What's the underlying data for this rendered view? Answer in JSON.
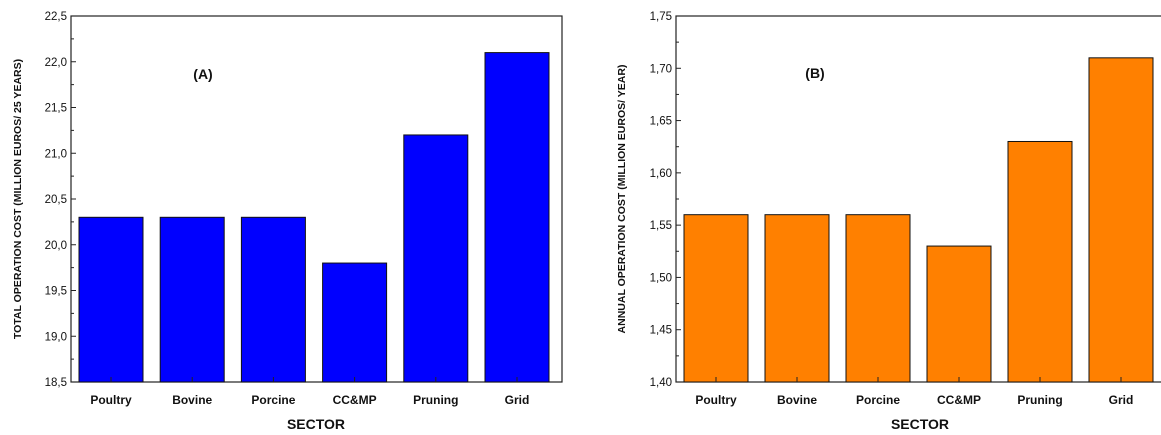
{
  "chart_data": [
    {
      "type": "bar",
      "annotation": "(A)",
      "categories": [
        "Poultry",
        "Bovine",
        "Porcine",
        "CC&MP",
        "Pruning",
        "Grid"
      ],
      "values": [
        20.3,
        20.3,
        20.3,
        19.8,
        21.2,
        22.1
      ],
      "xlabel": "SECTOR",
      "ylabel": "TOTAL OPERATION COST (MILLION EUROS/ 25 YEARS)",
      "ylim": [
        18.5,
        22.5
      ],
      "yticks": [
        "18,5",
        "19,0",
        "19,5",
        "20,0",
        "20,5",
        "21,0",
        "21,5",
        "22,0",
        "22,5"
      ],
      "bar_color": "#0000ff",
      "grid": false
    },
    {
      "type": "bar",
      "annotation": "(B)",
      "categories": [
        "Poultry",
        "Bovine",
        "Porcine",
        "CC&MP",
        "Pruning",
        "Grid"
      ],
      "values": [
        1.56,
        1.56,
        1.56,
        1.53,
        1.63,
        1.71
      ],
      "xlabel": "SECTOR",
      "ylabel": "ANNUAL OPERATION COST (MILLION EUROS/ YEAR)",
      "ylim": [
        1.4,
        1.75
      ],
      "yticks": [
        "1,40",
        "1,45",
        "1,50",
        "1,55",
        "1,60",
        "1,65",
        "1,70",
        "1,75"
      ],
      "bar_color": "#ff8000",
      "grid": false
    }
  ]
}
